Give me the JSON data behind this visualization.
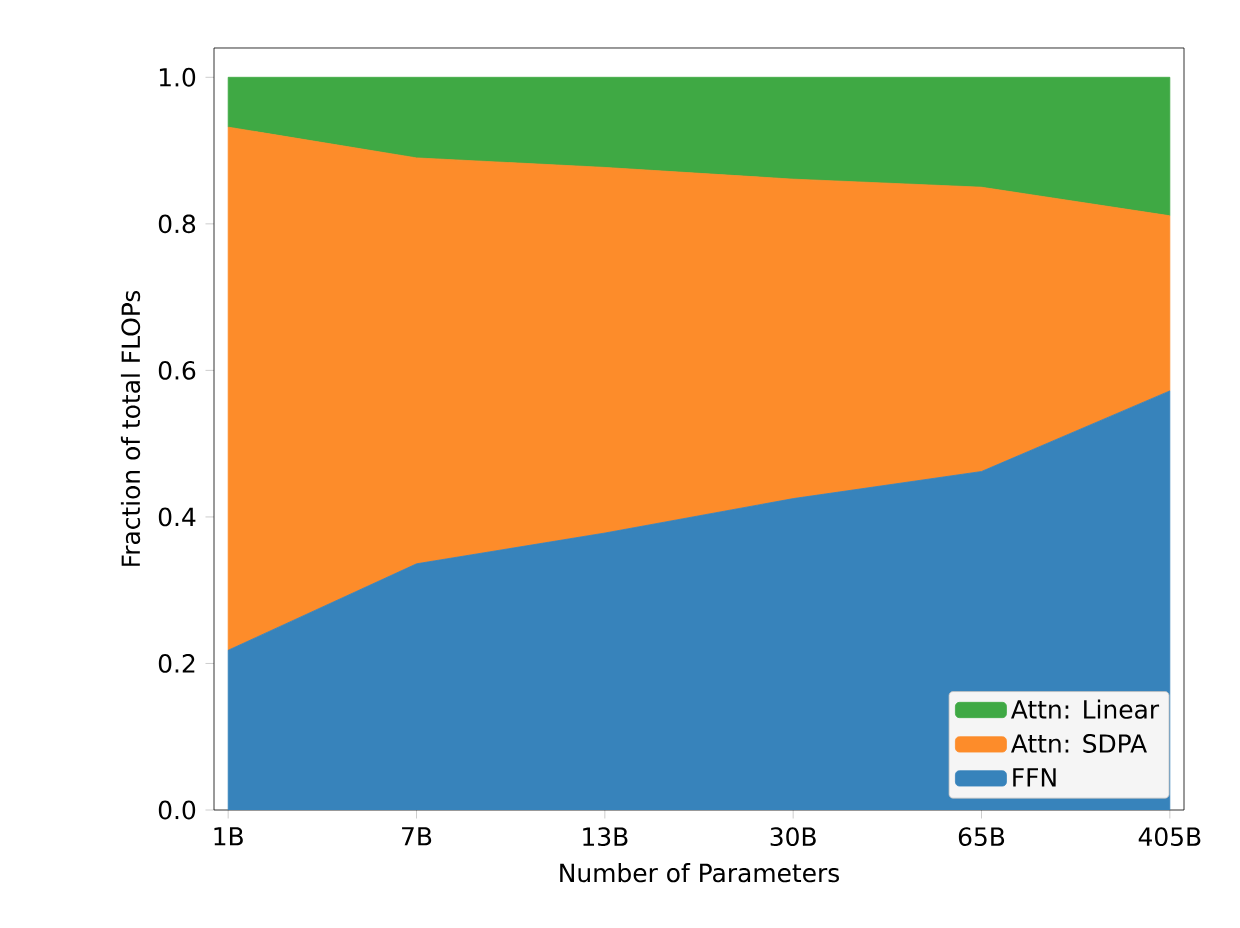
{
  "chart_data": {
    "type": "area",
    "stacked": true,
    "xlabel": "Number of Parameters",
    "ylabel": "Fraction of total FLOPs",
    "categories": [
      "1B",
      "7B",
      "13B",
      "30B",
      "65B",
      "405B"
    ],
    "series": [
      {
        "name": "FFN",
        "color": "#3783bb",
        "values": [
          0.218,
          0.336,
          0.378,
          0.425,
          0.462,
          0.572
        ]
      },
      {
        "name": "Attn: SDPA",
        "color": "#fd8c2a",
        "values": [
          0.714,
          0.554,
          0.499,
          0.436,
          0.388,
          0.239
        ]
      },
      {
        "name": "Attn: Linear",
        "color": "#3fa944",
        "values": [
          0.068,
          0.11,
          0.123,
          0.139,
          0.15,
          0.189
        ]
      }
    ],
    "ylim": [
      0,
      1.04
    ],
    "yticks": [
      {
        "value": 0,
        "label": "0.0"
      },
      0.2,
      0.4,
      0.6,
      0.8,
      {
        "value": 1,
        "label": "1.0"
      }
    ],
    "legend": "bottom right"
  }
}
